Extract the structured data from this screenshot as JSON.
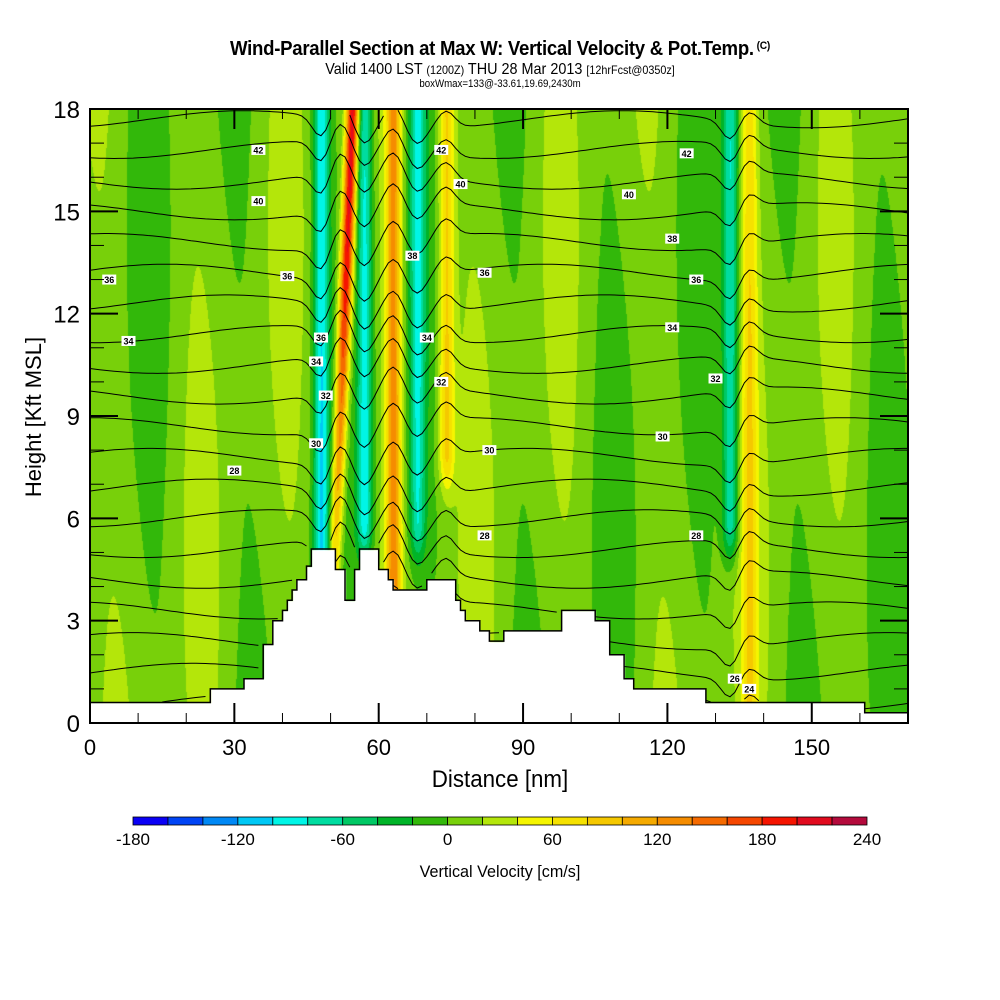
{
  "header": {
    "title": "Wind-Parallel Section at Max W: Vertical Velocity & Pot.Temp.",
    "title_mark": "(C)",
    "subtitle_pre": "Valid 1400 LST ",
    "subtitle_zulu": "(1200Z)",
    "subtitle_mid": " THU 28 Mar 2013 ",
    "subtitle_fcst": "[12hrFcst@0350z]",
    "info_line": "boxWmax=133@-33.61,19.69,2430m"
  },
  "chart_data": {
    "type": "heatmap",
    "title": "Wind-Parallel Section at Max W: Vertical Velocity & Pot.Temp.",
    "xlabel": "Distance [nm]",
    "ylabel": "Height [Kft MSL]",
    "xlim": [
      0,
      170
    ],
    "ylim": [
      0,
      18
    ],
    "xticks": [
      0,
      30,
      60,
      90,
      120,
      150
    ],
    "yticks": [
      0,
      3,
      6,
      9,
      12,
      15,
      18
    ],
    "x_minor_step": 10,
    "y_minor_step": 1,
    "colorbar": {
      "label": "Vertical Velocity [cm/s]",
      "bounds": [
        -180,
        240
      ],
      "step": 20,
      "tick_labels": [
        -180,
        -120,
        -60,
        0,
        60,
        120,
        180,
        240
      ],
      "colors": [
        "#0a00f5",
        "#0044f5",
        "#0088f5",
        "#00c8f5",
        "#00f5e6",
        "#00dca0",
        "#00c864",
        "#00b428",
        "#32b80a",
        "#78d00a",
        "#b4e60a",
        "#f5f500",
        "#f5e100",
        "#f5c800",
        "#f5aa00",
        "#f58c00",
        "#f56a00",
        "#f54600",
        "#f51400",
        "#e10a1e",
        "#b40a3c"
      ],
      "placement": "bottom"
    },
    "velocity_features": [
      {
        "kind": "updraft",
        "x_nm": 52,
        "peak_cm_s": 200,
        "z_range_kft": [
          4,
          18
        ],
        "note": "tilted red core rising from ~51 to ~53 nm"
      },
      {
        "kind": "downdraft",
        "x_nm": 48,
        "peak_cm_s": -100,
        "z_range_kft": [
          4,
          18
        ]
      },
      {
        "kind": "downdraft",
        "x_nm": 57,
        "peak_cm_s": -100,
        "z_range_kft": [
          6,
          18
        ]
      },
      {
        "kind": "updraft",
        "x_nm": 63,
        "peak_cm_s": 120,
        "z_range_kft": [
          4,
          18
        ]
      },
      {
        "kind": "downdraft",
        "x_nm": 68,
        "peak_cm_s": -80,
        "z_range_kft": [
          6,
          18
        ]
      },
      {
        "kind": "updraft",
        "x_nm": 74,
        "peak_cm_s": 80,
        "z_range_kft": [
          8,
          18
        ]
      },
      {
        "kind": "downdraft",
        "x_nm": 133,
        "peak_cm_s": -90,
        "z_range_kft": [
          6,
          18
        ]
      },
      {
        "kind": "updraft",
        "x_nm": 137,
        "peak_cm_s": 60,
        "z_range_kft": [
          0.5,
          18
        ]
      }
    ],
    "theta_contours": {
      "variable": "Potential Temperature",
      "interval": 1,
      "labelled_levels": [
        24,
        26,
        28,
        30,
        32,
        34,
        36,
        38,
        40,
        42
      ],
      "labels": [
        {
          "text": "42",
          "x_nm": 35,
          "z_kft": 16.8
        },
        {
          "text": "40",
          "x_nm": 35,
          "z_kft": 15.3
        },
        {
          "text": "36",
          "x_nm": 4,
          "z_kft": 13.0
        },
        {
          "text": "34",
          "x_nm": 8,
          "z_kft": 11.2
        },
        {
          "text": "36",
          "x_nm": 41,
          "z_kft": 13.1
        },
        {
          "text": "36",
          "x_nm": 48,
          "z_kft": 11.3
        },
        {
          "text": "34",
          "x_nm": 47,
          "z_kft": 10.6
        },
        {
          "text": "32",
          "x_nm": 49,
          "z_kft": 9.6
        },
        {
          "text": "30",
          "x_nm": 47,
          "z_kft": 8.2
        },
        {
          "text": "28",
          "x_nm": 30,
          "z_kft": 7.4
        },
        {
          "text": "42",
          "x_nm": 73,
          "z_kft": 16.8
        },
        {
          "text": "40",
          "x_nm": 77,
          "z_kft": 15.8
        },
        {
          "text": "38",
          "x_nm": 67,
          "z_kft": 13.7
        },
        {
          "text": "36",
          "x_nm": 82,
          "z_kft": 13.2
        },
        {
          "text": "34",
          "x_nm": 70,
          "z_kft": 11.3
        },
        {
          "text": "32",
          "x_nm": 73,
          "z_kft": 10.0
        },
        {
          "text": "30",
          "x_nm": 83,
          "z_kft": 8.0
        },
        {
          "text": "28",
          "x_nm": 82,
          "z_kft": 5.5
        },
        {
          "text": "40",
          "x_nm": 112,
          "z_kft": 15.5
        },
        {
          "text": "38",
          "x_nm": 121,
          "z_kft": 14.2
        },
        {
          "text": "42",
          "x_nm": 124,
          "z_kft": 16.7
        },
        {
          "text": "36",
          "x_nm": 126,
          "z_kft": 13.0
        },
        {
          "text": "34",
          "x_nm": 121,
          "z_kft": 11.6
        },
        {
          "text": "32",
          "x_nm": 130,
          "z_kft": 10.1
        },
        {
          "text": "30",
          "x_nm": 119,
          "z_kft": 8.4
        },
        {
          "text": "28",
          "x_nm": 126,
          "z_kft": 5.5
        },
        {
          "text": "26",
          "x_nm": 134,
          "z_kft": 1.3
        },
        {
          "text": "24",
          "x_nm": 137,
          "z_kft": 1.0
        }
      ]
    },
    "terrain_kft": {
      "x_nm": [
        0,
        21,
        25,
        32,
        34,
        36,
        38,
        39,
        40,
        41,
        42,
        43,
        44,
        45,
        46,
        50,
        51,
        53,
        55,
        56,
        59,
        60,
        62,
        63,
        64,
        65,
        66,
        67,
        70,
        72,
        74,
        75,
        76,
        77,
        78,
        79,
        81,
        82,
        83,
        85,
        86,
        88,
        92,
        93,
        96,
        98,
        99,
        100,
        101,
        102,
        103,
        104,
        105,
        106,
        107,
        108,
        111,
        112,
        113,
        127,
        128,
        160,
        161,
        170
      ],
      "z": [
        0.6,
        0.6,
        1.0,
        1.3,
        1.3,
        2.3,
        3.0,
        3.0,
        3.3,
        3.6,
        3.9,
        4.2,
        4.2,
        4.6,
        5.1,
        5.1,
        4.5,
        3.6,
        4.5,
        5.1,
        5.1,
        4.5,
        4.2,
        3.9,
        3.9,
        3.9,
        3.9,
        3.9,
        4.2,
        4.2,
        4.2,
        4.2,
        3.6,
        3.3,
        3.0,
        3.0,
        2.7,
        2.7,
        2.4,
        2.4,
        2.7,
        2.7,
        2.7,
        2.7,
        2.7,
        3.3,
        3.3,
        3.3,
        3.3,
        3.3,
        3.3,
        3.3,
        3.0,
        3.0,
        3.0,
        2.0,
        1.3,
        1.3,
        1.0,
        1.0,
        0.6,
        0.6,
        0.3,
        0.3
      ]
    }
  }
}
